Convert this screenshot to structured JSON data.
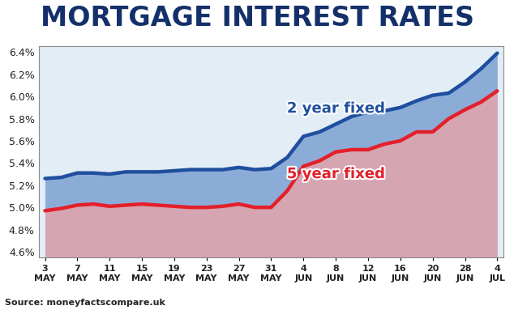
{
  "chart_data": {
    "type": "line",
    "title": "MORTGAGE INTEREST RATES",
    "source": "Source: moneyfactscompare.uk",
    "categories": [
      "3\nMAY",
      null,
      "7\nMAY",
      null,
      "11\nMAY",
      null,
      "15\nMAY",
      null,
      "19\nMAY",
      null,
      "23\nMAY",
      null,
      "27\nMAY",
      null,
      "31\nMAY",
      null,
      "4\nJUN",
      null,
      "8\nJUN",
      null,
      "12\nJUN",
      null,
      "16\nJUN",
      null,
      "20\nJUN",
      null,
      "28\nJUN",
      null,
      "4\nJUL"
    ],
    "series": [
      {
        "name": "2 year fixed",
        "color": "#1f4f9e",
        "values": [
          5.26,
          5.27,
          5.31,
          5.31,
          5.3,
          5.32,
          5.32,
          5.32,
          5.33,
          5.34,
          5.34,
          5.34,
          5.36,
          5.34,
          5.35,
          5.45,
          5.64,
          5.68,
          5.75,
          5.82,
          5.86,
          5.87,
          5.9,
          5.96,
          6.01,
          6.03,
          6.13,
          6.25,
          6.39
        ]
      },
      {
        "name": "5 year fixed",
        "color": "#e3202a",
        "values": [
          4.97,
          4.99,
          5.02,
          5.03,
          5.01,
          5.02,
          5.03,
          5.02,
          5.01,
          5.0,
          5.0,
          5.01,
          5.03,
          5.0,
          5.0,
          5.15,
          5.37,
          5.42,
          5.5,
          5.52,
          5.52,
          5.57,
          5.6,
          5.68,
          5.68,
          5.8,
          5.88,
          5.95,
          6.05
        ]
      }
    ],
    "ylim": [
      4.55,
      6.45
    ],
    "yticks": [
      {
        "value": 4.6,
        "label": "4.6%"
      },
      {
        "value": 4.8,
        "label": "4.8%"
      },
      {
        "value": 5.0,
        "label": "5.0%"
      },
      {
        "value": 5.2,
        "label": "5.2%"
      },
      {
        "value": 5.4,
        "label": "5.4%"
      },
      {
        "value": 5.6,
        "label": "5.6%"
      },
      {
        "value": 5.8,
        "label": "5.8%"
      },
      {
        "value": 6.0,
        "label": "6.0%"
      },
      {
        "value": 6.2,
        "label": "6.2%"
      },
      {
        "value": 6.4,
        "label": "6.4%"
      }
    ],
    "grid": false
  }
}
